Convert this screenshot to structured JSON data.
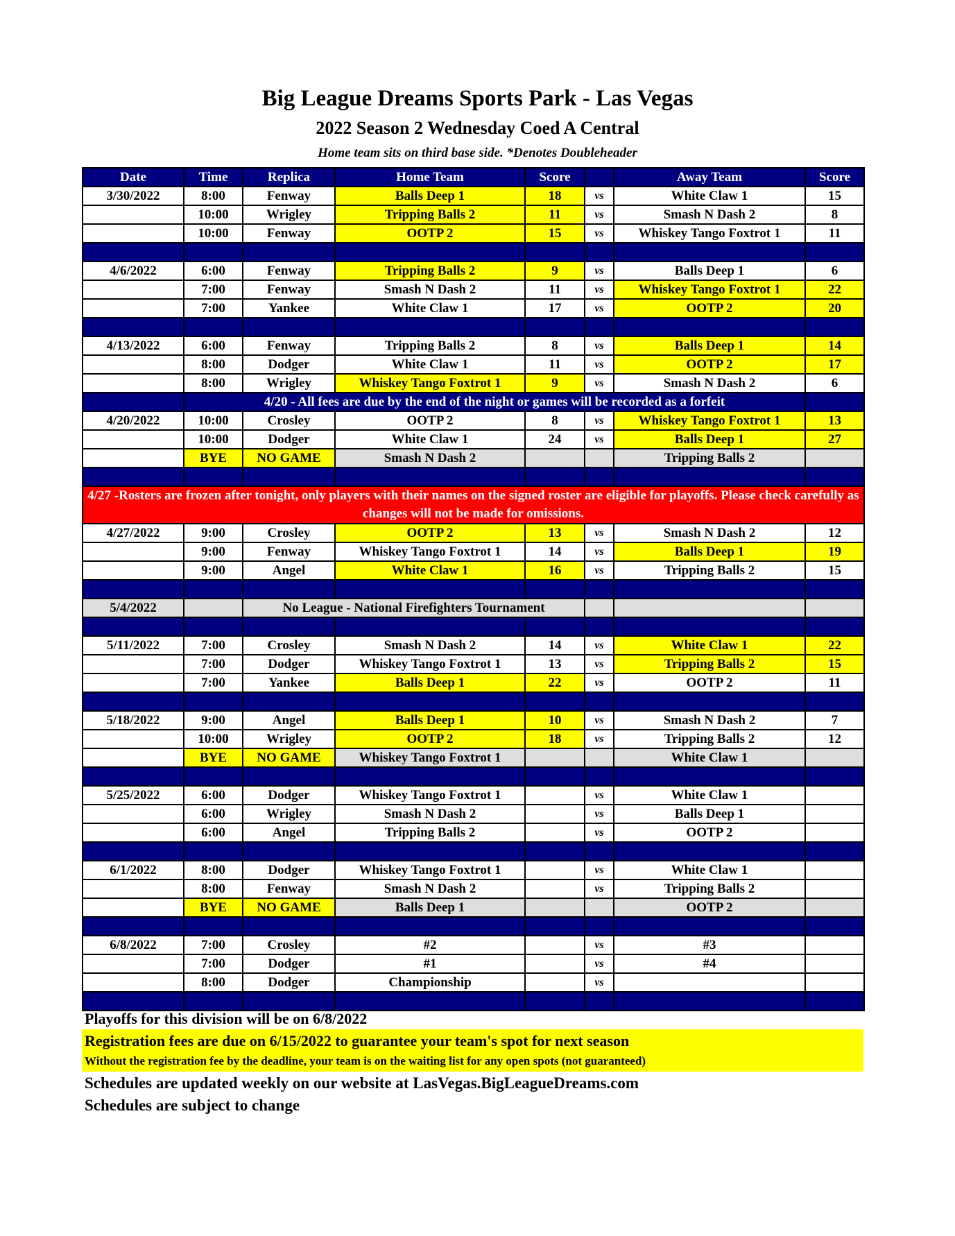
{
  "header": {
    "title": "Big League Dreams Sports Park - Las Vegas",
    "subtitle": "2022 Season 2 Wednesday Coed A Central",
    "note": "Home team sits on third base side.  *Denotes Doubleheader"
  },
  "colors": {
    "header_bg": "#000080",
    "winner": "#ffff00",
    "bye": "#dedede",
    "alert": "#ff0000"
  },
  "table": {
    "columns": [
      "Date",
      "Time",
      "Replica",
      "Home Team",
      "Score",
      "",
      "Away Team",
      "Score"
    ],
    "rows": [
      {
        "type": "game",
        "date": "3/30/2022",
        "time": "8:00",
        "field": "Fenway",
        "home": "Balls Deep 1",
        "hs": "18",
        "vs": "vs",
        "away": "White Claw 1",
        "as": "15",
        "win": "home"
      },
      {
        "type": "game",
        "date": "",
        "time": "10:00",
        "field": "Wrigley",
        "home": "Tripping Balls 2",
        "hs": "11",
        "vs": "vs",
        "away": "Smash N Dash 2",
        "as": "8",
        "win": "home"
      },
      {
        "type": "game",
        "date": "",
        "time": "10:00",
        "field": "Fenway",
        "home": "OOTP 2",
        "hs": "15",
        "vs": "vs",
        "away": "Whiskey Tango Foxtrot 1",
        "as": "11",
        "win": "home"
      },
      {
        "type": "spacer"
      },
      {
        "type": "game",
        "date": "4/6/2022",
        "time": "6:00",
        "field": "Fenway",
        "home": "Tripping Balls 2",
        "hs": "9",
        "vs": "vs",
        "away": "Balls Deep 1",
        "as": "6",
        "win": "home"
      },
      {
        "type": "game",
        "date": "",
        "time": "7:00",
        "field": "Fenway",
        "home": "Smash N Dash 2",
        "hs": "11",
        "vs": "vs",
        "away": "Whiskey Tango Foxtrot 1",
        "as": "22",
        "win": "away"
      },
      {
        "type": "game",
        "date": "",
        "time": "7:00",
        "field": "Yankee",
        "home": "White Claw 1",
        "hs": "17",
        "vs": "vs",
        "away": "OOTP 2",
        "as": "20",
        "win": "away"
      },
      {
        "type": "spacer"
      },
      {
        "type": "game",
        "date": "4/13/2022",
        "time": "6:00",
        "field": "Fenway",
        "home": "Tripping Balls 2",
        "hs": "8",
        "vs": "vs",
        "away": "Balls Deep 1",
        "as": "14",
        "win": "away"
      },
      {
        "type": "game",
        "date": "",
        "time": "8:00",
        "field": "Dodger",
        "home": "White Claw 1",
        "hs": "11",
        "vs": "vs",
        "away": "OOTP 2",
        "as": "17",
        "win": "away"
      },
      {
        "type": "game",
        "date": "",
        "time": "8:00",
        "field": "Wrigley",
        "home": "Whiskey Tango Foxtrot 1",
        "hs": "9",
        "vs": "vs",
        "away": "Smash N Dash 2",
        "as": "6",
        "win": "home"
      },
      {
        "type": "notice",
        "text": "4/20 - All fees are due by the end of the night or games will be recorded as a forfeit"
      },
      {
        "type": "game",
        "date": "4/20/2022",
        "time": "10:00",
        "field": "Crosley",
        "home": "OOTP 2",
        "hs": "8",
        "vs": "vs",
        "away": "Whiskey Tango Foxtrot 1",
        "as": "13",
        "win": "away"
      },
      {
        "type": "game",
        "date": "",
        "time": "10:00",
        "field": "Dodger",
        "home": "White Claw 1",
        "hs": "24",
        "vs": "vs",
        "away": "Balls Deep 1",
        "as": "27",
        "win": "away"
      },
      {
        "type": "bye",
        "date": "",
        "time": "BYE",
        "field": "NO GAME",
        "home": "Smash N Dash 2",
        "hs": "",
        "vs": "",
        "away": "Tripping Balls 2",
        "as": ""
      },
      {
        "type": "spacer"
      },
      {
        "type": "alert",
        "text": "4/27 -Rosters are frozen after tonight, only players with their names on the signed roster are eligible for playoffs. Please check carefully as changes will not be made for omissions."
      },
      {
        "type": "game",
        "date": "4/27/2022",
        "time": "9:00",
        "field": "Crosley",
        "home": "OOTP 2",
        "hs": "13",
        "vs": "vs",
        "away": "Smash N Dash 2",
        "as": "12",
        "win": "home"
      },
      {
        "type": "game",
        "date": "",
        "time": "9:00",
        "field": "Fenway",
        "home": "Whiskey Tango Foxtrot 1",
        "hs": "14",
        "vs": "vs",
        "away": "Balls Deep 1",
        "as": "19",
        "win": "away"
      },
      {
        "type": "game",
        "date": "",
        "time": "9:00",
        "field": "Angel",
        "home": "White Claw 1",
        "hs": "16",
        "vs": "vs",
        "away": "Tripping Balls 2",
        "as": "15",
        "win": "home"
      },
      {
        "type": "spacer"
      },
      {
        "type": "off",
        "date": "5/4/2022",
        "text": "No League - National Firefighters Tournament"
      },
      {
        "type": "spacer"
      },
      {
        "type": "game",
        "date": "5/11/2022",
        "time": "7:00",
        "field": "Crosley",
        "home": "Smash N Dash 2",
        "hs": "14",
        "vs": "vs",
        "away": "White Claw 1",
        "as": "22",
        "win": "away"
      },
      {
        "type": "game",
        "date": "",
        "time": "7:00",
        "field": "Dodger",
        "home": "Whiskey Tango Foxtrot 1",
        "hs": "13",
        "vs": "vs",
        "away": "Tripping Balls 2",
        "as": "15",
        "win": "away"
      },
      {
        "type": "game",
        "date": "",
        "time": "7:00",
        "field": "Yankee",
        "home": "Balls Deep 1",
        "hs": "22",
        "vs": "vs",
        "away": "OOTP 2",
        "as": "11",
        "win": "home"
      },
      {
        "type": "spacer"
      },
      {
        "type": "game",
        "date": "5/18/2022",
        "time": "9:00",
        "field": "Angel",
        "home": "Balls Deep 1",
        "hs": "10",
        "vs": "vs",
        "away": "Smash N Dash 2",
        "as": "7",
        "win": "home"
      },
      {
        "type": "game",
        "date": "",
        "time": "10:00",
        "field": "Wrigley",
        "home": "OOTP 2",
        "hs": "18",
        "vs": "vs",
        "away": "Tripping Balls 2",
        "as": "12",
        "win": "home"
      },
      {
        "type": "bye",
        "date": "",
        "time": "BYE",
        "field": "NO GAME",
        "home": "Whiskey Tango Foxtrot 1",
        "hs": "",
        "vs": "",
        "away": "White Claw 1",
        "as": ""
      },
      {
        "type": "spacer"
      },
      {
        "type": "game",
        "date": "5/25/2022",
        "time": "6:00",
        "field": "Dodger",
        "home": "Whiskey Tango Foxtrot 1",
        "hs": "",
        "vs": "vs",
        "away": "White Claw 1",
        "as": "",
        "win": ""
      },
      {
        "type": "game",
        "date": "",
        "time": "6:00",
        "field": "Wrigley",
        "home": "Smash N Dash 2",
        "hs": "",
        "vs": "vs",
        "away": "Balls Deep 1",
        "as": "",
        "win": ""
      },
      {
        "type": "game",
        "date": "",
        "time": "6:00",
        "field": "Angel",
        "home": "Tripping Balls 2",
        "hs": "",
        "vs": "vs",
        "away": "OOTP 2",
        "as": "",
        "win": ""
      },
      {
        "type": "spacer"
      },
      {
        "type": "game",
        "date": "6/1/2022",
        "time": "8:00",
        "field": "Dodger",
        "home": "Whiskey Tango Foxtrot 1",
        "hs": "",
        "vs": "vs",
        "away": "White Claw 1",
        "as": "",
        "win": ""
      },
      {
        "type": "game",
        "date": "",
        "time": "8:00",
        "field": "Fenway",
        "home": "Smash N Dash 2",
        "hs": "",
        "vs": "vs",
        "away": "Tripping Balls 2",
        "as": "",
        "win": ""
      },
      {
        "type": "bye",
        "date": "",
        "time": "BYE",
        "field": "NO GAME",
        "home": "Balls Deep 1",
        "hs": "",
        "vs": "",
        "away": "OOTP 2",
        "as": ""
      },
      {
        "type": "spacer"
      },
      {
        "type": "game",
        "date": "6/8/2022",
        "time": "7:00",
        "field": "Crosley",
        "home": "#2",
        "hs": "",
        "vs": "vs",
        "away": "#3",
        "as": "",
        "win": ""
      },
      {
        "type": "game",
        "date": "",
        "time": "7:00",
        "field": "Dodger",
        "home": "#1",
        "hs": "",
        "vs": "vs",
        "away": "#4",
        "as": "",
        "win": ""
      },
      {
        "type": "game",
        "date": "",
        "time": "8:00",
        "field": "Dodger",
        "home": "Championship",
        "hs": "",
        "vs": "vs",
        "away": "",
        "as": "",
        "win": ""
      },
      {
        "type": "spacer"
      }
    ]
  },
  "footer": {
    "playoffs": "Playoffs for this division will be on 6/8/2022",
    "registration": "Registration fees are due on 6/15/2022 to guarantee your team's spot for next season",
    "registration_note": "Without the registration fee by the deadline, your team is on the waiting list for any open spots (not guaranteed)",
    "website": "Schedules are updated weekly on our website at LasVegas.BigLeagueDreams.com",
    "change": "Schedules are subject to change"
  }
}
